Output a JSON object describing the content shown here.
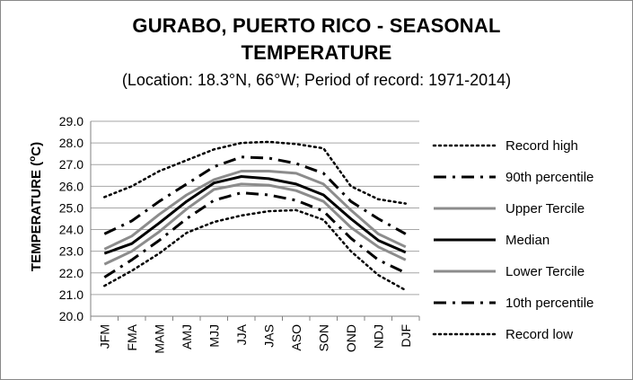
{
  "chart_data": {
    "type": "line",
    "title_line1": "GURABO, PUERTO RICO - SEASONAL",
    "title_line2": "TEMPERATURE",
    "subtitle": "(Location: 18.3°N, 66°W; Period of record: 1971-2014)",
    "xlabel": "",
    "ylabel_main": "TEMPERATURE (",
    "ylabel_sup": "o",
    "ylabel_end": "C)",
    "categories": [
      "JFM",
      "FMA",
      "MAM",
      "AMJ",
      "MJJ",
      "JJA",
      "JAS",
      "ASO",
      "SON",
      "OND",
      "NDJ",
      "DJF"
    ],
    "ylim": [
      20.0,
      29.0
    ],
    "yticks": [
      "20.0",
      "21.0",
      "22.0",
      "23.0",
      "24.0",
      "25.0",
      "26.0",
      "27.0",
      "28.0",
      "29.0"
    ],
    "grid": true,
    "legend_position": "right",
    "series": [
      {
        "name": "Record high",
        "style": "dotted",
        "color": "#000000",
        "values": [
          25.5,
          26.0,
          26.7,
          27.2,
          27.7,
          28.0,
          28.05,
          27.95,
          27.75,
          26.0,
          25.4,
          25.2
        ]
      },
      {
        "name": "90th percentile",
        "style": "dashdot",
        "color": "#000000",
        "values": [
          23.8,
          24.4,
          25.3,
          26.1,
          26.9,
          27.35,
          27.3,
          27.05,
          26.6,
          25.3,
          24.5,
          23.8
        ]
      },
      {
        "name": "Upper Tercile",
        "style": "solid",
        "color": "#8c8c8c",
        "values": [
          23.1,
          23.7,
          24.7,
          25.6,
          26.3,
          26.7,
          26.7,
          26.6,
          26.1,
          24.9,
          23.8,
          23.2
        ]
      },
      {
        "name": "Median",
        "style": "solid",
        "color": "#000000",
        "values": [
          22.9,
          23.35,
          24.3,
          25.3,
          26.15,
          26.45,
          26.35,
          26.1,
          25.6,
          24.5,
          23.5,
          22.95
        ]
      },
      {
        "name": "Lower Tercile",
        "style": "solid",
        "color": "#8c8c8c",
        "values": [
          22.4,
          23.0,
          23.9,
          24.95,
          25.85,
          26.1,
          26.05,
          25.8,
          25.3,
          24.1,
          23.2,
          22.6
        ]
      },
      {
        "name": "10th percentile",
        "style": "dashdot",
        "color": "#000000",
        "values": [
          21.8,
          22.6,
          23.5,
          24.5,
          25.35,
          25.7,
          25.6,
          25.35,
          24.85,
          23.6,
          22.6,
          22.0
        ]
      },
      {
        "name": "Record low",
        "style": "dotted",
        "color": "#000000",
        "values": [
          21.4,
          22.1,
          22.9,
          23.85,
          24.35,
          24.65,
          24.85,
          24.9,
          24.45,
          23.0,
          21.9,
          21.2
        ]
      }
    ]
  }
}
